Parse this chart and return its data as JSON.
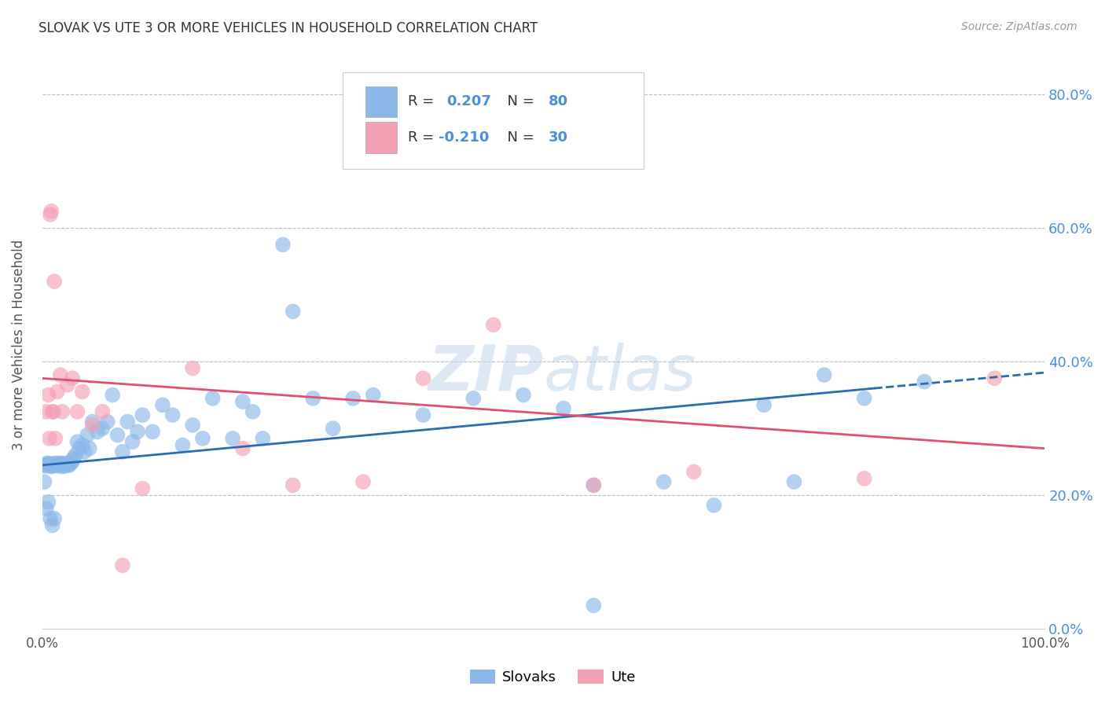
{
  "title": "SLOVAK VS UTE 3 OR MORE VEHICLES IN HOUSEHOLD CORRELATION CHART",
  "source": "Source: ZipAtlas.com",
  "ylabel": "3 or more Vehicles in Household",
  "xlim": [
    0.0,
    1.0
  ],
  "ylim": [
    0.0,
    0.85
  ],
  "yticks": [
    0.0,
    0.2,
    0.4,
    0.6,
    0.8
  ],
  "xticks": [
    0.0,
    0.2,
    0.4,
    0.6,
    0.8,
    1.0
  ],
  "xtick_labels": [
    "0.0%",
    "",
    "",
    "",
    "",
    "100.0%"
  ],
  "ytick_labels_right": [
    "0.0%",
    "20.0%",
    "40.0%",
    "60.0%",
    "80.0%"
  ],
  "slovaks_color": "#8BB8E8",
  "ute_color": "#F4A0B5",
  "slovaks_line_color": "#2B6CB0",
  "ute_line_color": "#E05070",
  "background_color": "#FFFFFF",
  "grid_color": "#BBBBBB",
  "right_ytick_color": "#4A90D9",
  "legend_R_color": "#000000",
  "legend_N_color": "#4A90D9",
  "watermark_color": "#C5D8EF",
  "slovaks_line_start_y": 0.245,
  "slovaks_line_end_y": 0.36,
  "ute_line_start_y": 0.375,
  "ute_line_end_y": 0.27,
  "sk_x": [
    0.002,
    0.003,
    0.004,
    0.005,
    0.006,
    0.007,
    0.008,
    0.009,
    0.01,
    0.011,
    0.012,
    0.013,
    0.014,
    0.015,
    0.016,
    0.017,
    0.018,
    0.019,
    0.02,
    0.021,
    0.022,
    0.023,
    0.025,
    0.026,
    0.027,
    0.028,
    0.03,
    0.031,
    0.033,
    0.035,
    0.037,
    0.04,
    0.042,
    0.045,
    0.047,
    0.05,
    0.055,
    0.06,
    0.065,
    0.07,
    0.075,
    0.08,
    0.085,
    0.09,
    0.095,
    0.1,
    0.11,
    0.12,
    0.13,
    0.14,
    0.15,
    0.16,
    0.17,
    0.19,
    0.2,
    0.21,
    0.22,
    0.24,
    0.25,
    0.27,
    0.29,
    0.31,
    0.33,
    0.38,
    0.43,
    0.48,
    0.52,
    0.55,
    0.62,
    0.67,
    0.72,
    0.75,
    0.78,
    0.82,
    0.88,
    0.002,
    0.004,
    0.006,
    0.008,
    0.01,
    0.012,
    0.55
  ],
  "sk_y": [
    0.245,
    0.244,
    0.246,
    0.248,
    0.244,
    0.246,
    0.247,
    0.243,
    0.245,
    0.244,
    0.246,
    0.248,
    0.245,
    0.247,
    0.244,
    0.246,
    0.248,
    0.247,
    0.243,
    0.246,
    0.247,
    0.244,
    0.248,
    0.246,
    0.245,
    0.248,
    0.25,
    0.255,
    0.26,
    0.28,
    0.27,
    0.275,
    0.265,
    0.29,
    0.27,
    0.31,
    0.295,
    0.3,
    0.31,
    0.35,
    0.29,
    0.265,
    0.31,
    0.28,
    0.295,
    0.32,
    0.295,
    0.335,
    0.32,
    0.275,
    0.305,
    0.285,
    0.345,
    0.285,
    0.34,
    0.325,
    0.285,
    0.575,
    0.475,
    0.345,
    0.3,
    0.345,
    0.35,
    0.32,
    0.345,
    0.35,
    0.33,
    0.215,
    0.22,
    0.185,
    0.335,
    0.22,
    0.38,
    0.345,
    0.37,
    0.22,
    0.18,
    0.19,
    0.165,
    0.155,
    0.165,
    0.035
  ],
  "ute_x": [
    0.004,
    0.006,
    0.007,
    0.008,
    0.009,
    0.01,
    0.011,
    0.012,
    0.013,
    0.015,
    0.018,
    0.02,
    0.025,
    0.03,
    0.035,
    0.04,
    0.05,
    0.06,
    0.08,
    0.1,
    0.15,
    0.2,
    0.25,
    0.32,
    0.38,
    0.45,
    0.55,
    0.65,
    0.82,
    0.95
  ],
  "ute_y": [
    0.325,
    0.35,
    0.285,
    0.62,
    0.625,
    0.325,
    0.325,
    0.52,
    0.285,
    0.355,
    0.38,
    0.325,
    0.365,
    0.375,
    0.325,
    0.355,
    0.305,
    0.325,
    0.095,
    0.21,
    0.39,
    0.27,
    0.215,
    0.22,
    0.375,
    0.455,
    0.215,
    0.235,
    0.225,
    0.375
  ]
}
